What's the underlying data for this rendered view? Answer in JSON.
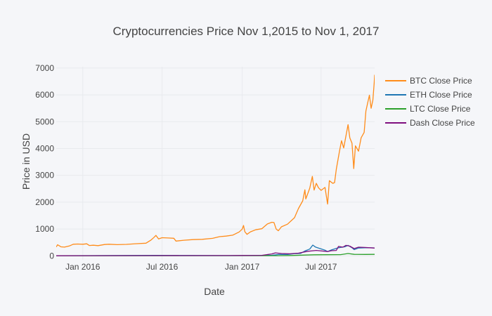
{
  "chart_data": {
    "type": "line",
    "title": "Cryptocurrencies Price Nov 1,2015 to Nov 1, 2017",
    "xlabel": "Date",
    "ylabel": "Price in USD",
    "xlim": [
      "2015-11-01",
      "2017-11-01"
    ],
    "ylim": [
      -150,
      7050
    ],
    "grid": true,
    "legend_position": "top-right",
    "x_ticks": [
      {
        "date": "2016-01-01",
        "label": "Jan 2016"
      },
      {
        "date": "2016-07-01",
        "label": "Jul 2016"
      },
      {
        "date": "2017-01-01",
        "label": "Jan 2017"
      },
      {
        "date": "2017-07-01",
        "label": "Jul 2017"
      }
    ],
    "y_ticks": [
      0,
      1000,
      2000,
      3000,
      4000,
      5000,
      6000,
      7000
    ],
    "series": [
      {
        "name": "BTC Close Price",
        "color": "#ff8c1a",
        "points": [
          [
            "2015-11-01",
            330
          ],
          [
            "2015-11-04",
            410
          ],
          [
            "2015-11-08",
            375
          ],
          [
            "2015-11-12",
            335
          ],
          [
            "2015-11-20",
            325
          ],
          [
            "2015-12-01",
            365
          ],
          [
            "2015-12-10",
            430
          ],
          [
            "2015-12-20",
            440
          ],
          [
            "2016-01-01",
            430
          ],
          [
            "2016-01-10",
            448
          ],
          [
            "2016-01-16",
            385
          ],
          [
            "2016-01-25",
            395
          ],
          [
            "2016-02-05",
            380
          ],
          [
            "2016-02-20",
            420
          ],
          [
            "2016-03-01",
            430
          ],
          [
            "2016-03-20",
            415
          ],
          [
            "2016-04-10",
            425
          ],
          [
            "2016-05-01",
            450
          ],
          [
            "2016-05-25",
            470
          ],
          [
            "2016-06-05",
            580
          ],
          [
            "2016-06-12",
            680
          ],
          [
            "2016-06-17",
            760
          ],
          [
            "2016-06-23",
            630
          ],
          [
            "2016-07-01",
            675
          ],
          [
            "2016-07-15",
            665
          ],
          [
            "2016-07-28",
            655
          ],
          [
            "2016-08-02",
            550
          ],
          [
            "2016-08-20",
            580
          ],
          [
            "2016-09-10",
            605
          ],
          [
            "2016-10-01",
            615
          ],
          [
            "2016-10-25",
            650
          ],
          [
            "2016-11-10",
            715
          ],
          [
            "2016-11-25",
            735
          ],
          [
            "2016-12-10",
            770
          ],
          [
            "2016-12-25",
            890
          ],
          [
            "2017-01-01",
            995
          ],
          [
            "2017-01-04",
            1130
          ],
          [
            "2017-01-07",
            900
          ],
          [
            "2017-01-12",
            800
          ],
          [
            "2017-01-20",
            895
          ],
          [
            "2017-02-01",
            970
          ],
          [
            "2017-02-15",
            1010
          ],
          [
            "2017-02-28",
            1190
          ],
          [
            "2017-03-10",
            1250
          ],
          [
            "2017-03-15",
            1240
          ],
          [
            "2017-03-20",
            1000
          ],
          [
            "2017-03-25",
            935
          ],
          [
            "2017-04-01",
            1080
          ],
          [
            "2017-04-15",
            1180
          ],
          [
            "2017-05-01",
            1420
          ],
          [
            "2017-05-10",
            1760
          ],
          [
            "2017-05-20",
            2050
          ],
          [
            "2017-05-25",
            2460
          ],
          [
            "2017-05-27",
            2120
          ],
          [
            "2017-06-05",
            2520
          ],
          [
            "2017-06-11",
            2960
          ],
          [
            "2017-06-15",
            2450
          ],
          [
            "2017-06-20",
            2700
          ],
          [
            "2017-06-25",
            2540
          ],
          [
            "2017-07-01",
            2440
          ],
          [
            "2017-07-10",
            2550
          ],
          [
            "2017-07-16",
            1930
          ],
          [
            "2017-07-20",
            2800
          ],
          [
            "2017-07-28",
            2700
          ],
          [
            "2017-08-01",
            2730
          ],
          [
            "2017-08-05",
            3230
          ],
          [
            "2017-08-12",
            3870
          ],
          [
            "2017-08-17",
            4290
          ],
          [
            "2017-08-22",
            4020
          ],
          [
            "2017-09-01",
            4890
          ],
          [
            "2017-09-05",
            4400
          ],
          [
            "2017-09-10",
            4200
          ],
          [
            "2017-09-14",
            3250
          ],
          [
            "2017-09-18",
            4100
          ],
          [
            "2017-09-25",
            3900
          ],
          [
            "2017-10-01",
            4400
          ],
          [
            "2017-10-08",
            4600
          ],
          [
            "2017-10-12",
            5400
          ],
          [
            "2017-10-16",
            5700
          ],
          [
            "2017-10-20",
            5990
          ],
          [
            "2017-10-24",
            5500
          ],
          [
            "2017-10-28",
            5800
          ],
          [
            "2017-10-31",
            6450
          ],
          [
            "2017-11-01",
            6750
          ]
        ]
      },
      {
        "name": "ETH Close Price",
        "color": "#1f77b4",
        "points": [
          [
            "2015-11-01",
            1
          ],
          [
            "2016-03-01",
            10
          ],
          [
            "2016-06-15",
            18
          ],
          [
            "2016-09-01",
            12
          ],
          [
            "2016-12-01",
            8
          ],
          [
            "2017-01-01",
            10
          ],
          [
            "2017-02-15",
            13
          ],
          [
            "2017-03-10",
            20
          ],
          [
            "2017-03-25",
            50
          ],
          [
            "2017-04-15",
            50
          ],
          [
            "2017-05-01",
            80
          ],
          [
            "2017-05-15",
            90
          ],
          [
            "2017-05-25",
            180
          ],
          [
            "2017-06-05",
            250
          ],
          [
            "2017-06-12",
            400
          ],
          [
            "2017-06-18",
            330
          ],
          [
            "2017-06-25",
            290
          ],
          [
            "2017-07-10",
            210
          ],
          [
            "2017-07-16",
            160
          ],
          [
            "2017-07-25",
            220
          ],
          [
            "2017-08-10",
            300
          ],
          [
            "2017-08-25",
            340
          ],
          [
            "2017-09-01",
            390
          ],
          [
            "2017-09-10",
            300
          ],
          [
            "2017-09-15",
            230
          ],
          [
            "2017-09-25",
            290
          ],
          [
            "2017-10-10",
            300
          ],
          [
            "2017-10-25",
            298
          ],
          [
            "2017-11-01",
            290
          ]
        ]
      },
      {
        "name": "LTC Close Price",
        "color": "#2ca02c",
        "points": [
          [
            "2015-11-01",
            3
          ],
          [
            "2016-06-01",
            4
          ],
          [
            "2017-01-01",
            4
          ],
          [
            "2017-03-20",
            5
          ],
          [
            "2017-04-25",
            12
          ],
          [
            "2017-05-25",
            28
          ],
          [
            "2017-06-15",
            38
          ],
          [
            "2017-07-15",
            42
          ],
          [
            "2017-08-15",
            45
          ],
          [
            "2017-09-01",
            85
          ],
          [
            "2017-09-15",
            55
          ],
          [
            "2017-10-10",
            52
          ],
          [
            "2017-11-01",
            55
          ]
        ]
      },
      {
        "name": "Dash Close Price",
        "color": "#7f0f7e",
        "points": [
          [
            "2015-11-01",
            3
          ],
          [
            "2016-06-01",
            8
          ],
          [
            "2016-12-01",
            10
          ],
          [
            "2017-01-01",
            12
          ],
          [
            "2017-02-15",
            18
          ],
          [
            "2017-03-10",
            70
          ],
          [
            "2017-03-18",
            110
          ],
          [
            "2017-04-01",
            85
          ],
          [
            "2017-04-20",
            75
          ],
          [
            "2017-05-10",
            100
          ],
          [
            "2017-06-01",
            170
          ],
          [
            "2017-06-20",
            200
          ],
          [
            "2017-07-16",
            160
          ],
          [
            "2017-07-25",
            190
          ],
          [
            "2017-08-05",
            200
          ],
          [
            "2017-08-10",
            350
          ],
          [
            "2017-08-20",
            320
          ],
          [
            "2017-08-27",
            390
          ],
          [
            "2017-09-05",
            360
          ],
          [
            "2017-09-15",
            270
          ],
          [
            "2017-09-25",
            320
          ],
          [
            "2017-10-10",
            310
          ],
          [
            "2017-10-20",
            300
          ],
          [
            "2017-11-01",
            290
          ]
        ]
      }
    ]
  }
}
